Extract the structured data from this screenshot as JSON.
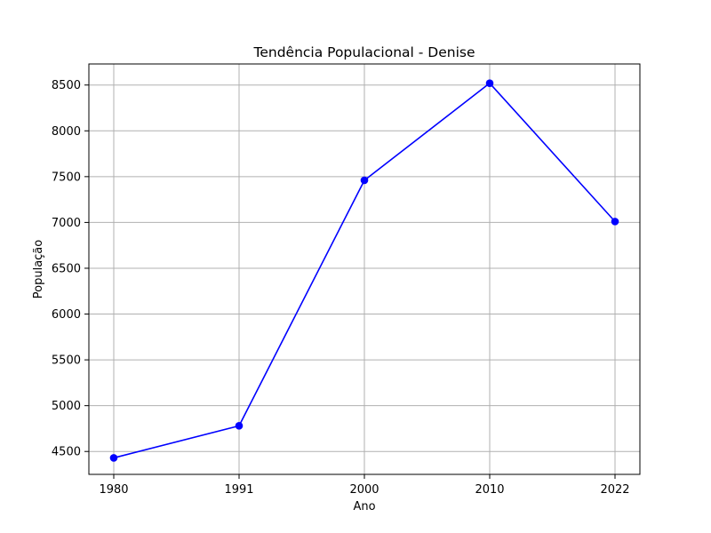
{
  "chart_data": {
    "type": "line",
    "title": "Tendência Populacional - Denise",
    "xlabel": "Ano",
    "ylabel": "População",
    "x_categories": [
      "1980",
      "1991",
      "2000",
      "2010",
      "2022"
    ],
    "series": [
      {
        "values": [
          4430,
          4780,
          7460,
          8520,
          7010
        ],
        "color": "#0000ff"
      }
    ],
    "y_ticks": [
      4500,
      5000,
      5500,
      6000,
      6500,
      7000,
      7500,
      8000,
      8500
    ],
    "ylim": [
      4250,
      8730
    ],
    "grid": true
  }
}
